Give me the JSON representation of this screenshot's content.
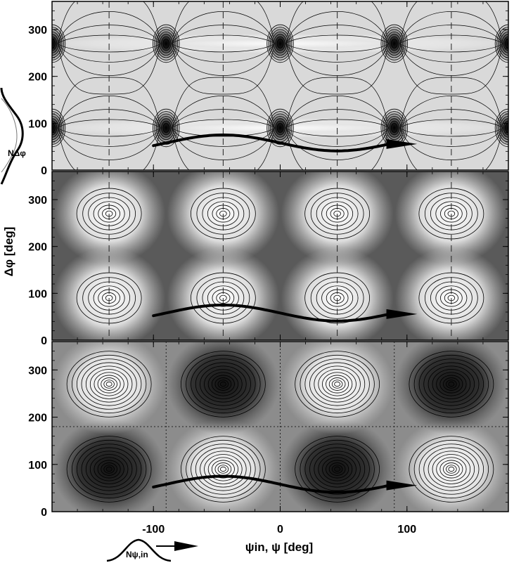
{
  "figure": {
    "x_axis_label": "ψin, ψ [deg]",
    "y_axis_label": "Δφ [deg]",
    "side_annotation": "NΔφ",
    "bottom_annotation": "Nψ,in"
  },
  "chart_data": [
    {
      "type": "heatmap",
      "panel": "top",
      "background": "light",
      "xlim": [
        -180,
        180
      ],
      "ylim": [
        0,
        360
      ],
      "x_ticks": [
        "-100",
        "0",
        "100"
      ],
      "y_ticks": [
        "0",
        "100",
        "200",
        "300"
      ],
      "centers": [
        {
          "x": -180,
          "y": 90
        },
        {
          "x": -90,
          "y": 90
        },
        {
          "x": 0,
          "y": 90
        },
        {
          "x": 90,
          "y": 90
        },
        {
          "x": 180,
          "y": 90
        },
        {
          "x": -180,
          "y": 270
        },
        {
          "x": -90,
          "y": 270
        },
        {
          "x": 0,
          "y": 270
        },
        {
          "x": 90,
          "y": 270
        },
        {
          "x": 180,
          "y": 270
        }
      ],
      "reference_lines_x": [
        -135,
        -45,
        45,
        135
      ],
      "reference_line_style": "dashed",
      "trajectory": {
        "x_start": -100,
        "x_end": 108,
        "y_mid": 58,
        "amplitude": 17
      }
    },
    {
      "type": "heatmap",
      "panel": "middle",
      "background": "dark",
      "xlim": [
        -180,
        180
      ],
      "ylim": [
        0,
        360
      ],
      "x_ticks": [
        "-100",
        "0",
        "100"
      ],
      "y_ticks": [
        "0",
        "100",
        "200",
        "300"
      ],
      "centers": [
        {
          "x": -135,
          "y": 90
        },
        {
          "x": -45,
          "y": 90
        },
        {
          "x": 45,
          "y": 90
        },
        {
          "x": 135,
          "y": 90
        },
        {
          "x": -135,
          "y": 270
        },
        {
          "x": -45,
          "y": 270
        },
        {
          "x": 45,
          "y": 270
        },
        {
          "x": 135,
          "y": 270
        }
      ],
      "reference_lines_x": [
        -135,
        -45,
        45,
        135
      ],
      "reference_line_style": "dashed",
      "trajectory": {
        "x_start": -100,
        "x_end": 108,
        "y_mid": 58,
        "amplitude": 17
      }
    },
    {
      "type": "heatmap",
      "panel": "bottom",
      "background": "mixed",
      "xlim": [
        -180,
        180
      ],
      "ylim": [
        0,
        360
      ],
      "x_ticks": [
        "-100",
        "0",
        "100"
      ],
      "y_ticks": [
        "0",
        "100",
        "200",
        "300"
      ],
      "centers": [
        {
          "x": -135,
          "y": 90,
          "tone": "dark"
        },
        {
          "x": -45,
          "y": 90,
          "tone": "light"
        },
        {
          "x": 45,
          "y": 90,
          "tone": "dark"
        },
        {
          "x": 135,
          "y": 90,
          "tone": "light"
        },
        {
          "x": -135,
          "y": 270,
          "tone": "light"
        },
        {
          "x": -45,
          "y": 270,
          "tone": "dark"
        },
        {
          "x": 45,
          "y": 270,
          "tone": "light"
        },
        {
          "x": 135,
          "y": 270,
          "tone": "dark"
        }
      ],
      "reference_lines_x": [
        -90,
        0,
        90
      ],
      "reference_lines_y": [
        180
      ],
      "reference_line_style": "dotted",
      "trajectory": {
        "x_start": -100,
        "x_end": 108,
        "y_mid": 58,
        "amplitude": 17
      }
    }
  ],
  "colors": {
    "contour": "#000000",
    "top_background": "#d9d9d9",
    "middle_background": "#5a5a5a",
    "bottom_background": "#8c8c8c"
  }
}
